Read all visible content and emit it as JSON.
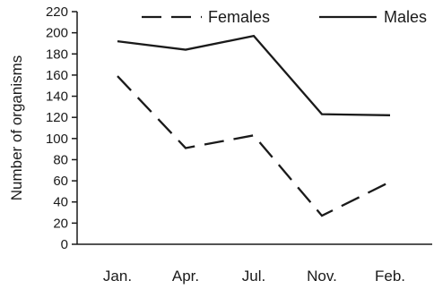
{
  "chart_data": {
    "type": "line",
    "categories": [
      "Jan.",
      "Apr.",
      "Jul.",
      "Nov.",
      "Feb."
    ],
    "series": [
      {
        "name": "Females",
        "values": [
          159,
          91,
          103,
          27,
          59
        ],
        "dash": "dashed",
        "color": "#1a1a1a"
      },
      {
        "name": "Males",
        "values": [
          192,
          184,
          197,
          123,
          122
        ],
        "dash": "solid",
        "color": "#1a1a1a"
      }
    ],
    "title": "",
    "xlabel": "",
    "ylabel": "Number of organisms",
    "ylim": [
      0,
      220
    ],
    "yticks": [
      0,
      20,
      40,
      60,
      80,
      100,
      120,
      140,
      160,
      180,
      200,
      220
    ],
    "grid": false,
    "legend_position": "top"
  }
}
